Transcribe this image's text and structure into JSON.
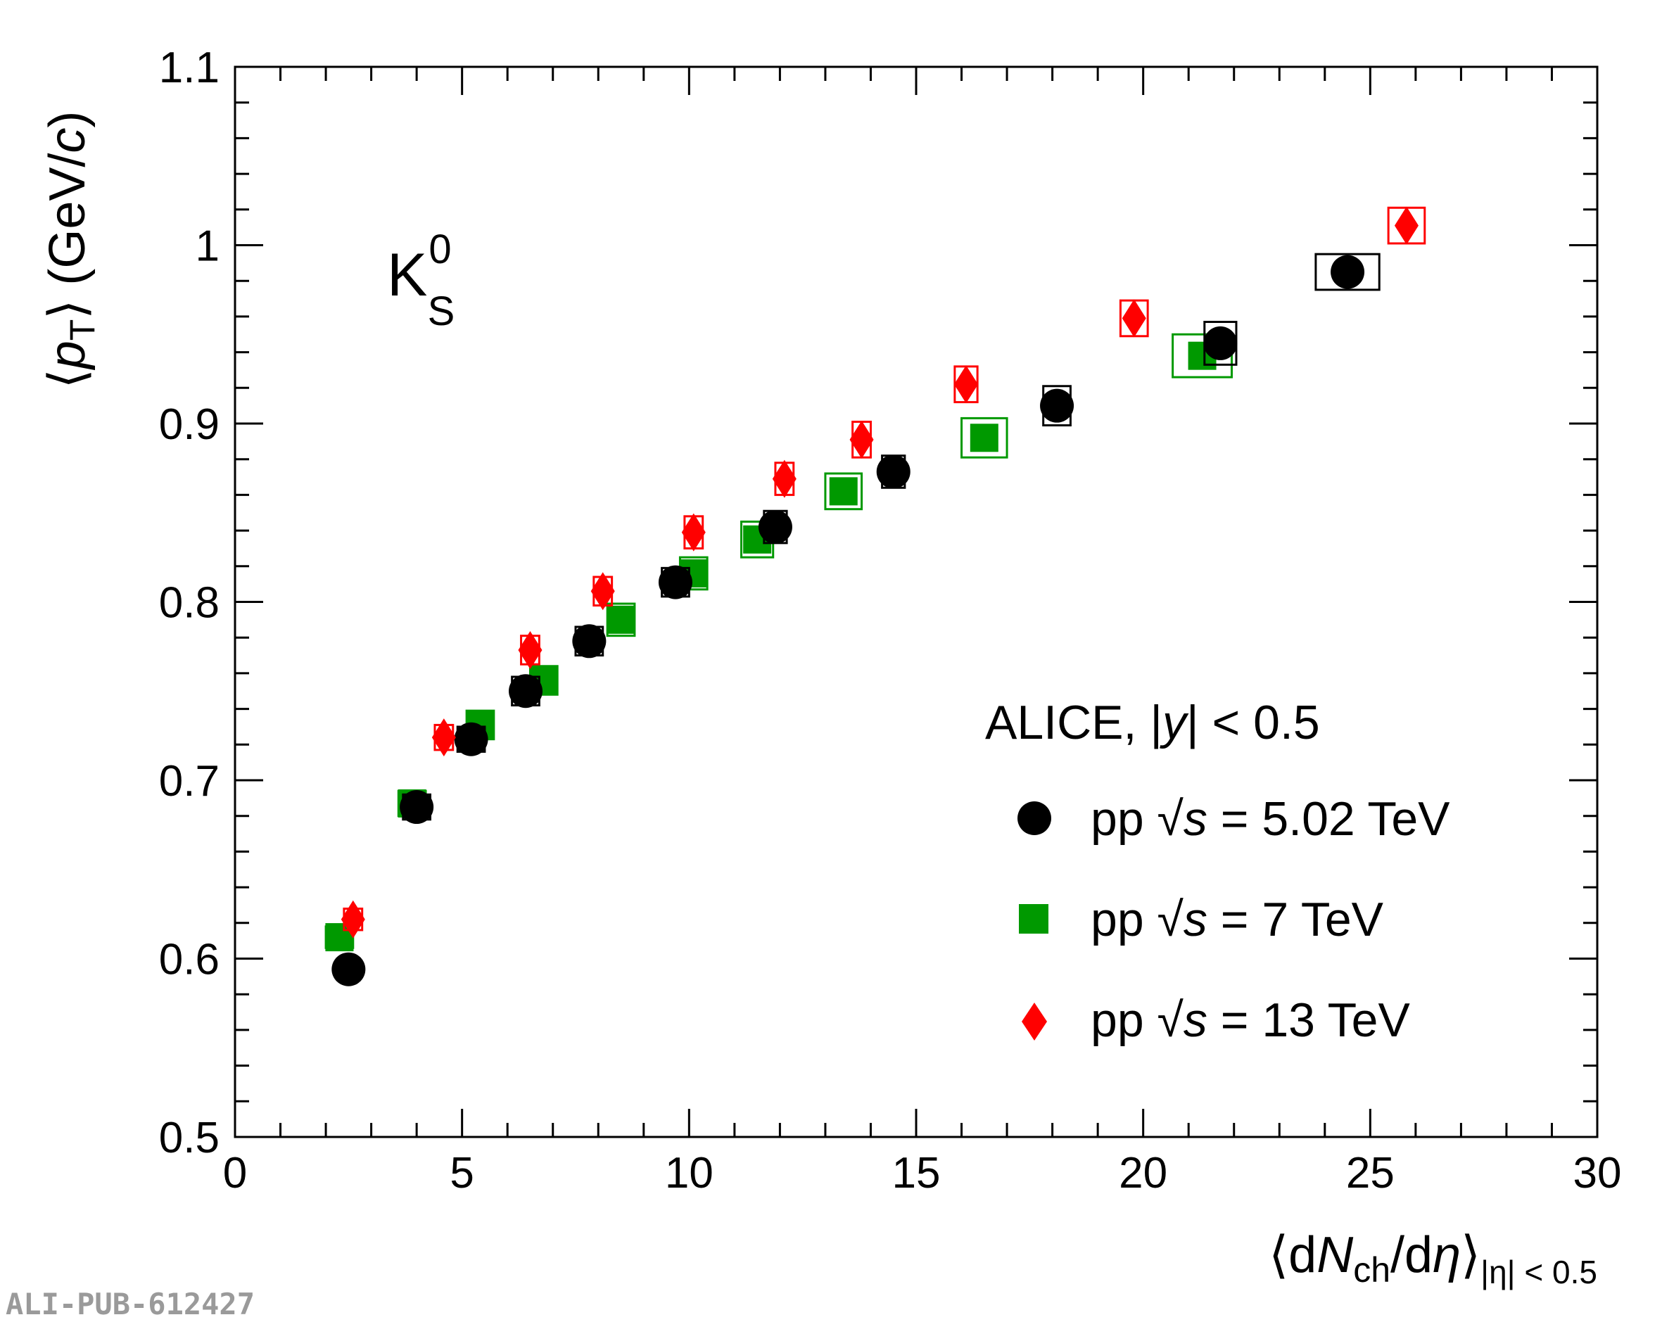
{
  "chart_data": {
    "type": "scatter",
    "title": "",
    "particle": "K",
    "particle_sup": "0",
    "particle_sub": "S",
    "xlabel": {
      "open": "⟨d",
      "N": "N",
      "ch": "ch",
      "slash_d": "/d",
      "eta": "η",
      "close": "⟩",
      "sub": "|η| < 0.5"
    },
    "ylabel": {
      "open": "⟨",
      "p": "p",
      "T": "T",
      "close": "⟩",
      "units_a": " (GeV/",
      "c": "c",
      "units_b": ")"
    },
    "xlim": [
      0,
      30
    ],
    "ylim": [
      0.5,
      1.1
    ],
    "xticks": [
      "0",
      "5",
      "10",
      "15",
      "20",
      "25",
      "30"
    ],
    "yticks": [
      "0.5",
      "0.6",
      "0.7",
      "0.8",
      "0.9",
      "1",
      "1.1"
    ],
    "xtick_values": [
      0,
      5,
      10,
      15,
      20,
      25,
      30
    ],
    "ytick_values": [
      0.5,
      0.6,
      0.7,
      0.8,
      0.9,
      1.0,
      1.1
    ],
    "grid": false,
    "legend_header": {
      "prefix": "ALICE,  |",
      "y": "y",
      "suffix": "| < 0.5"
    },
    "legend_position": "bottom-right",
    "series": [
      {
        "name": "pp √s = 5.02 TeV",
        "label_prefix": "pp  √",
        "label_s": "s",
        "label_suffix": " = 5.02 TeV",
        "marker": "circle",
        "color": "#000000",
        "x": [
          2.5,
          4.0,
          5.2,
          6.4,
          7.8,
          9.7,
          11.9,
          14.5,
          18.1,
          21.7,
          24.5
        ],
        "y": [
          0.594,
          0.685,
          0.723,
          0.75,
          0.778,
          0.811,
          0.842,
          0.873,
          0.91,
          0.945,
          0.985
        ],
        "sys_x": [
          0.25,
          0.3,
          0.3,
          0.3,
          0.3,
          0.3,
          0.25,
          0.25,
          0.3,
          0.35,
          0.7
        ],
        "sys_y": [
          0.006,
          0.007,
          0.007,
          0.008,
          0.008,
          0.008,
          0.009,
          0.009,
          0.011,
          0.012,
          0.01
        ]
      },
      {
        "name": "pp √s = 7 TeV",
        "label_prefix": "pp  √",
        "label_s": "s",
        "label_suffix": " = 7 TeV",
        "marker": "square",
        "color": "#009900",
        "x": [
          2.3,
          3.9,
          5.4,
          6.8,
          8.5,
          10.1,
          11.5,
          13.4,
          16.5,
          21.3
        ],
        "y": [
          0.612,
          0.687,
          0.731,
          0.756,
          0.79,
          0.816,
          0.835,
          0.862,
          0.892,
          0.938
        ],
        "sys_x": [
          0.3,
          0.3,
          0.3,
          0.3,
          0.3,
          0.3,
          0.35,
          0.4,
          0.5,
          0.65
        ],
        "sys_y": [
          0.006,
          0.007,
          0.008,
          0.008,
          0.009,
          0.009,
          0.01,
          0.01,
          0.011,
          0.012
        ]
      },
      {
        "name": "pp √s = 13 TeV",
        "label_prefix": "pp  √",
        "label_s": "s",
        "label_suffix": " = 13 TeV",
        "marker": "diamond",
        "color": "#ff0000",
        "x": [
          2.6,
          4.6,
          6.5,
          8.1,
          10.1,
          12.1,
          13.8,
          16.1,
          19.8,
          25.8
        ],
        "y": [
          0.622,
          0.724,
          0.773,
          0.806,
          0.839,
          0.869,
          0.891,
          0.922,
          0.959,
          1.011
        ],
        "sys_x": [
          0.2,
          0.2,
          0.2,
          0.2,
          0.2,
          0.2,
          0.2,
          0.25,
          0.3,
          0.4
        ],
        "sys_y": [
          0.006,
          0.007,
          0.008,
          0.008,
          0.009,
          0.009,
          0.01,
          0.01,
          0.01,
          0.01
        ]
      }
    ]
  },
  "publication_tag": "ALI-PUB-612427"
}
